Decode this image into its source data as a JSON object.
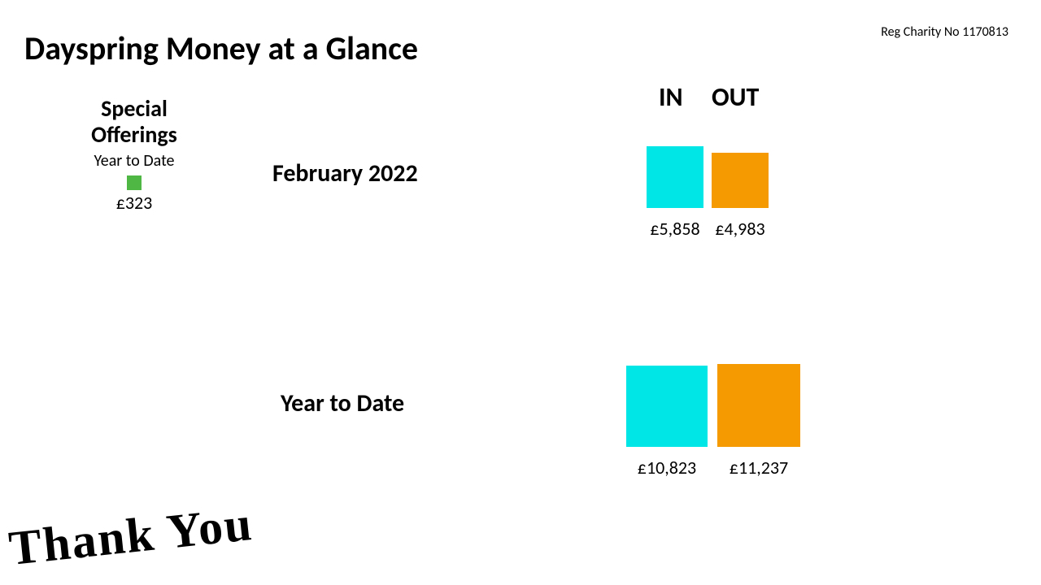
{
  "header": {
    "title": "Dayspring Money at a Glance",
    "charity_no": "Reg Charity No 1170813"
  },
  "special_offerings": {
    "title_line1": "Special",
    "title_line2": "Offerings",
    "subtitle": "Year to Date",
    "box_color": "#4fb743",
    "amount": "£323"
  },
  "labels": {
    "month": "February 2022",
    "ytd": "Year to Date",
    "in": "IN",
    "out": "OUT",
    "thank_you": "Thank You"
  },
  "colors": {
    "in": "#00e5e5",
    "out": "#f59a00",
    "background": "#ffffff",
    "text": "#000000"
  },
  "month_chart": {
    "type": "bar",
    "in_value": 5858,
    "out_value": 4983,
    "in_label": "£5,858",
    "out_label": "£4,983",
    "in_width": 70,
    "in_height": 76,
    "out_width": 70,
    "out_height": 68,
    "gap": 10
  },
  "ytd_chart": {
    "type": "bar",
    "in_value": 10823,
    "out_value": 11237,
    "in_label": "£10,823",
    "out_label": "£11,237",
    "in_width": 100,
    "in_height": 100,
    "out_width": 102,
    "out_height": 102,
    "gap": 12
  },
  "typography": {
    "title_fontsize": 40,
    "header_fontsize": 32,
    "label_fontsize": 30,
    "value_fontsize": 22,
    "thank_you_fontsize": 60
  }
}
